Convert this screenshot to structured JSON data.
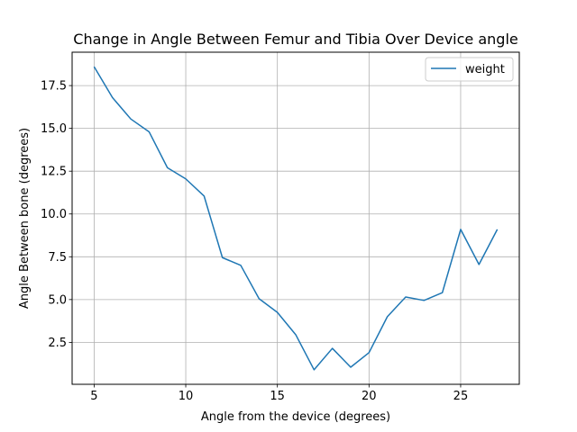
{
  "chart_data": {
    "type": "line",
    "title": "Change in Angle Between Femur and Tibia Over Device angle",
    "xlabel": "Angle from the device (degrees)",
    "ylabel": "Angle Between bone (degrees)",
    "xlim": [
      3.8,
      28.2
    ],
    "ylim": [
      0.05,
      19.45
    ],
    "xticks": [
      5,
      10,
      15,
      20,
      25
    ],
    "xtick_labels": [
      "5",
      "10",
      "15",
      "20",
      "25"
    ],
    "yticks": [
      2.5,
      5.0,
      7.5,
      10.0,
      12.5,
      15.0,
      17.5
    ],
    "ytick_labels": [
      "2.5",
      "5.0",
      "7.5",
      "10.0",
      "12.5",
      "15.0",
      "17.5"
    ],
    "grid": true,
    "legend_position": "top-right",
    "series": [
      {
        "name": "weight",
        "color": "#1f77b4",
        "x": [
          5,
          6,
          7,
          8,
          9,
          10,
          11,
          12,
          13,
          14,
          15,
          16,
          17,
          18,
          19,
          20,
          21,
          22,
          23,
          24,
          25,
          26,
          27
        ],
        "y": [
          18.6,
          16.8,
          15.55,
          14.8,
          12.7,
          12.05,
          11.05,
          7.45,
          7.0,
          5.05,
          4.25,
          2.95,
          0.9,
          2.15,
          1.05,
          1.9,
          4.0,
          5.15,
          4.95,
          5.4,
          9.1,
          7.05,
          9.1
        ]
      }
    ]
  }
}
